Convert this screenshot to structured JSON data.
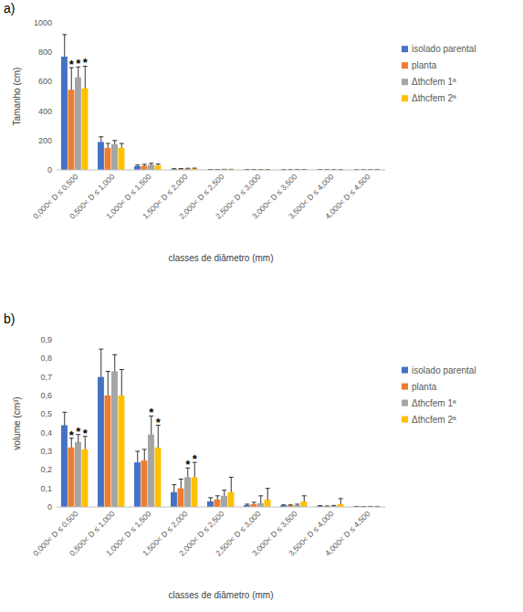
{
  "chart_data": [
    {
      "type": "bar",
      "label": "a)",
      "y_label": "Tamanho (cm)",
      "x_label": "classes de diâmetro (mm)",
      "categories": [
        "0,000< D ≤ 0,500",
        "0,500< D ≤ 1,000",
        "1,000< D ≤ 1,500",
        "1,500< D ≤ 2,000",
        "2,000< D ≤ 2,500",
        "2,500< D ≤ 3,000",
        "3,000< D ≤ 3,500",
        "3,500< D ≤ 4,000",
        "4,000< D ≤ 4,500"
      ],
      "series": [
        {
          "name": "isolado parental",
          "color": "#4472c4",
          "values": [
            770,
            190,
            25,
            5,
            2,
            1,
            0.5,
            0.2,
            0
          ],
          "errors": [
            150,
            35,
            8,
            3,
            1,
            0.5,
            0.5,
            0.2,
            0
          ]
        },
        {
          "name": "planta",
          "color": "#ed7d31",
          "values": [
            545,
            150,
            28,
            6,
            2,
            1,
            0.5,
            0.2,
            0
          ],
          "errors": [
            150,
            30,
            10,
            3,
            1,
            0.5,
            0.5,
            0.2,
            0
          ]
        },
        {
          "name": "Δthcfem 1ª",
          "color": "#a5a5a5",
          "values": [
            630,
            175,
            35,
            8,
            3,
            1.5,
            1,
            0.3,
            0.1
          ],
          "errors": [
            70,
            25,
            10,
            3,
            1,
            1,
            0.5,
            0.3,
            0.1
          ]
        },
        {
          "name": "Δthcfem 2ª",
          "color": "#ffc000",
          "values": [
            555,
            150,
            30,
            9,
            3,
            2,
            1,
            0.5,
            0.2
          ],
          "errors": [
            150,
            30,
            10,
            3,
            1,
            1,
            1,
            0.5,
            0.2
          ]
        }
      ],
      "annotations": [
        {
          "text": "*",
          "category": 0,
          "series": 1
        },
        {
          "text": "*",
          "category": 0,
          "series": 2
        },
        {
          "text": "*",
          "category": 0,
          "series": 3
        }
      ],
      "ylim": [
        0,
        1000
      ],
      "yticks": [
        0,
        200,
        400,
        600,
        800,
        1000
      ],
      "grid": false,
      "legend": "right"
    },
    {
      "type": "bar",
      "label": "b)",
      "y_label": "volume (cm³)",
      "x_label": "classes de diâmetro (mm)",
      "categories": [
        "0,000< D ≤ 0,500",
        "0,500< D ≤ 1,000",
        "1,000< D ≤ 1,500",
        "1,500< D ≤ 2,000",
        "2,000< D ≤ 2,500",
        "2,500< D ≤ 3,000",
        "3,000< D ≤ 3,500",
        "3,500< D ≤ 4,000",
        "4,000< D ≤ 4,500"
      ],
      "series": [
        {
          "name": "isolado parental",
          "color": "#4472c4",
          "values": [
            0.44,
            0.7,
            0.24,
            0.08,
            0.03,
            0.01,
            0.008,
            0.005,
            0.002
          ],
          "errors": [
            0.07,
            0.15,
            0.06,
            0.04,
            0.02,
            0.005,
            0.003,
            0.002,
            0.001
          ]
        },
        {
          "name": "planta",
          "color": "#ed7d31",
          "values": [
            0.32,
            0.6,
            0.25,
            0.1,
            0.04,
            0.015,
            0.008,
            0.003,
            0.001
          ],
          "errors": [
            0.05,
            0.13,
            0.06,
            0.05,
            0.02,
            0.01,
            0.003,
            0.002,
            0.001
          ]
        },
        {
          "name": "Δthcfem 1ª",
          "color": "#a5a5a5",
          "values": [
            0.35,
            0.73,
            0.39,
            0.16,
            0.06,
            0.02,
            0.01,
            0.005,
            0.002
          ],
          "errors": [
            0.04,
            0.09,
            0.1,
            0.05,
            0.03,
            0.04,
            0.005,
            0.003,
            0.001
          ]
        },
        {
          "name": "Δthcfem 2ª",
          "color": "#ffc000",
          "values": [
            0.31,
            0.6,
            0.32,
            0.16,
            0.08,
            0.04,
            0.03,
            0.015,
            0.002
          ],
          "errors": [
            0.07,
            0.14,
            0.12,
            0.08,
            0.08,
            0.06,
            0.03,
            0.03,
            0.001
          ]
        }
      ],
      "annotations": [
        {
          "text": "*",
          "category": 0,
          "series": 1
        },
        {
          "text": "*",
          "category": 0,
          "series": 2
        },
        {
          "text": "*",
          "category": 0,
          "series": 3
        },
        {
          "text": "*",
          "category": 2,
          "series": 2
        },
        {
          "text": "*",
          "category": 2,
          "series": 3
        },
        {
          "text": "*",
          "category": 3,
          "series": 2
        },
        {
          "text": "*",
          "category": 3,
          "series": 3
        }
      ],
      "ylim": [
        0,
        0.9
      ],
      "yticks": [
        0,
        {
          "value": 0.1,
          "label": "0,1"
        },
        {
          "value": 0.2,
          "label": "0,2"
        },
        {
          "value": 0.3,
          "label": "0,3"
        },
        {
          "value": 0.4,
          "label": "0,4"
        },
        {
          "value": 0.5,
          "label": "0,5"
        },
        {
          "value": 0.6,
          "label": "0,6"
        },
        {
          "value": 0.7,
          "label": "0,7"
        },
        {
          "value": 0.8,
          "label": "0,8"
        },
        {
          "value": 0.9,
          "label": "0,9"
        }
      ],
      "grid": false,
      "legend": "right"
    }
  ]
}
